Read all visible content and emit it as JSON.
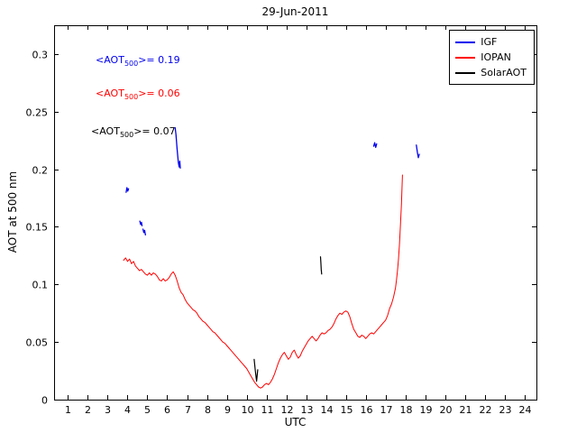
{
  "figure": {
    "background": "#ffffff"
  },
  "chart_data": {
    "type": "line",
    "title": "29-Jun-2011",
    "xlabel": "UTC",
    "ylabel": "AOT at 500 nm",
    "xlim": [
      0.3,
      24.6
    ],
    "ylim": [
      0,
      0.325
    ],
    "xticks": [
      1,
      2,
      3,
      4,
      5,
      6,
      7,
      8,
      9,
      10,
      11,
      12,
      13,
      14,
      15,
      16,
      17,
      18,
      19,
      20,
      21,
      22,
      23,
      24
    ],
    "yticks": [
      0,
      0.05,
      0.1,
      0.15,
      0.2,
      0.25,
      0.3
    ],
    "ytick_labels": [
      "0",
      "0.05",
      "0.1",
      "0.15",
      "0.2",
      "0.25",
      "0.3"
    ],
    "grid": false,
    "legend": {
      "position": "top-right",
      "entries": [
        {
          "label": "IGF",
          "color": "#0000ee"
        },
        {
          "label": "IOPAN",
          "color": "#ff0000"
        },
        {
          "label": "SolarAOT",
          "color": "#000000"
        }
      ]
    },
    "mean_annotations": [
      {
        "pre": "<AOT",
        "sub": "500",
        "post": ">= 0.19",
        "color": "#0000ee"
      },
      {
        "pre": "<AOT",
        "sub": "500",
        "post": ">= 0.06",
        "color": "#ff0000"
      },
      {
        "pre": "<AOT",
        "sub": "500",
        "post": ">= 0.07",
        "color": "#000000"
      }
    ],
    "series": [
      {
        "name": "IGF",
        "color": "#0000ee",
        "style": "segments",
        "width": 1.3,
        "segments": [
          [
            [
              3.93,
              0.18
            ],
            [
              3.97,
              0.184
            ],
            [
              4.01,
              0.181
            ],
            [
              4.05,
              0.183
            ]
          ],
          [
            [
              4.62,
              0.155
            ],
            [
              4.66,
              0.152
            ],
            [
              4.7,
              0.154
            ],
            [
              4.73,
              0.151
            ]
          ],
          [
            [
              4.78,
              0.148
            ],
            [
              4.82,
              0.145
            ],
            [
              4.86,
              0.147
            ],
            [
              4.9,
              0.143
            ]
          ],
          [
            [
              6.4,
              0.236
            ],
            [
              6.44,
              0.23
            ],
            [
              6.47,
              0.224
            ],
            [
              6.5,
              0.217
            ],
            [
              6.53,
              0.211
            ],
            [
              6.56,
              0.206
            ],
            [
              6.6,
              0.202
            ],
            [
              6.63,
              0.207
            ],
            [
              6.66,
              0.201
            ]
          ],
          [
            [
              16.4,
              0.22
            ],
            [
              16.45,
              0.223
            ],
            [
              16.5,
              0.219
            ],
            [
              16.55,
              0.222
            ]
          ],
          [
            [
              18.55,
              0.221
            ],
            [
              18.6,
              0.215
            ],
            [
              18.65,
              0.21
            ],
            [
              18.7,
              0.213
            ]
          ]
        ]
      },
      {
        "name": "IOPAN",
        "color": "#ff0000",
        "style": "line",
        "width": 1,
        "points": [
          [
            3.8,
            0.121
          ],
          [
            3.9,
            0.123
          ],
          [
            4.0,
            0.12
          ],
          [
            4.1,
            0.122
          ],
          [
            4.2,
            0.118
          ],
          [
            4.3,
            0.12
          ],
          [
            4.4,
            0.116
          ],
          [
            4.5,
            0.114
          ],
          [
            4.6,
            0.112
          ],
          [
            4.7,
            0.113
          ],
          [
            4.8,
            0.111
          ],
          [
            4.9,
            0.109
          ],
          [
            5.0,
            0.108
          ],
          [
            5.1,
            0.11
          ],
          [
            5.2,
            0.108
          ],
          [
            5.3,
            0.11
          ],
          [
            5.4,
            0.109
          ],
          [
            5.5,
            0.107
          ],
          [
            5.6,
            0.104
          ],
          [
            5.7,
            0.103
          ],
          [
            5.8,
            0.105
          ],
          [
            5.9,
            0.103
          ],
          [
            6.0,
            0.104
          ],
          [
            6.1,
            0.106
          ],
          [
            6.2,
            0.109
          ],
          [
            6.3,
            0.111
          ],
          [
            6.4,
            0.108
          ],
          [
            6.5,
            0.103
          ],
          [
            6.6,
            0.097
          ],
          [
            6.7,
            0.093
          ],
          [
            6.8,
            0.091
          ],
          [
            6.9,
            0.087
          ],
          [
            7.0,
            0.084
          ],
          [
            7.1,
            0.082
          ],
          [
            7.2,
            0.08
          ],
          [
            7.3,
            0.078
          ],
          [
            7.4,
            0.077
          ],
          [
            7.5,
            0.075
          ],
          [
            7.6,
            0.072
          ],
          [
            7.7,
            0.07
          ],
          [
            7.8,
            0.068
          ],
          [
            7.9,
            0.067
          ],
          [
            8.0,
            0.065
          ],
          [
            8.1,
            0.063
          ],
          [
            8.2,
            0.061
          ],
          [
            8.3,
            0.059
          ],
          [
            8.4,
            0.058
          ],
          [
            8.5,
            0.056
          ],
          [
            8.6,
            0.054
          ],
          [
            8.7,
            0.052
          ],
          [
            8.8,
            0.05
          ],
          [
            8.9,
            0.049
          ],
          [
            9.0,
            0.047
          ],
          [
            9.1,
            0.045
          ],
          [
            9.2,
            0.043
          ],
          [
            9.3,
            0.041
          ],
          [
            9.4,
            0.039
          ],
          [
            9.5,
            0.037
          ],
          [
            9.6,
            0.035
          ],
          [
            9.7,
            0.033
          ],
          [
            9.8,
            0.031
          ],
          [
            9.9,
            0.029
          ],
          [
            10.0,
            0.027
          ],
          [
            10.1,
            0.024
          ],
          [
            10.2,
            0.021
          ],
          [
            10.3,
            0.018
          ],
          [
            10.4,
            0.015
          ],
          [
            10.5,
            0.013
          ],
          [
            10.6,
            0.011
          ],
          [
            10.7,
            0.01
          ],
          [
            10.8,
            0.011
          ],
          [
            10.9,
            0.013
          ],
          [
            11.0,
            0.014
          ],
          [
            11.1,
            0.013
          ],
          [
            11.2,
            0.015
          ],
          [
            11.3,
            0.018
          ],
          [
            11.4,
            0.022
          ],
          [
            11.5,
            0.027
          ],
          [
            11.6,
            0.032
          ],
          [
            11.7,
            0.036
          ],
          [
            11.8,
            0.039
          ],
          [
            11.9,
            0.041
          ],
          [
            12.0,
            0.038
          ],
          [
            12.1,
            0.035
          ],
          [
            12.2,
            0.037
          ],
          [
            12.3,
            0.041
          ],
          [
            12.4,
            0.043
          ],
          [
            12.5,
            0.039
          ],
          [
            12.6,
            0.036
          ],
          [
            12.7,
            0.038
          ],
          [
            12.8,
            0.042
          ],
          [
            12.9,
            0.045
          ],
          [
            13.0,
            0.048
          ],
          [
            13.1,
            0.051
          ],
          [
            13.2,
            0.053
          ],
          [
            13.3,
            0.055
          ],
          [
            13.4,
            0.053
          ],
          [
            13.5,
            0.051
          ],
          [
            13.6,
            0.053
          ],
          [
            13.7,
            0.056
          ],
          [
            13.8,
            0.058
          ],
          [
            13.9,
            0.057
          ],
          [
            14.0,
            0.058
          ],
          [
            14.1,
            0.06
          ],
          [
            14.2,
            0.061
          ],
          [
            14.3,
            0.063
          ],
          [
            14.4,
            0.066
          ],
          [
            14.5,
            0.07
          ],
          [
            14.6,
            0.073
          ],
          [
            14.7,
            0.075
          ],
          [
            14.8,
            0.074
          ],
          [
            14.9,
            0.076
          ],
          [
            15.0,
            0.077
          ],
          [
            15.1,
            0.076
          ],
          [
            15.2,
            0.072
          ],
          [
            15.3,
            0.066
          ],
          [
            15.4,
            0.061
          ],
          [
            15.5,
            0.058
          ],
          [
            15.6,
            0.055
          ],
          [
            15.7,
            0.054
          ],
          [
            15.8,
            0.056
          ],
          [
            15.9,
            0.055
          ],
          [
            16.0,
            0.053
          ],
          [
            16.1,
            0.055
          ],
          [
            16.2,
            0.057
          ],
          [
            16.3,
            0.058
          ],
          [
            16.4,
            0.057
          ],
          [
            16.5,
            0.059
          ],
          [
            16.6,
            0.061
          ],
          [
            16.7,
            0.063
          ],
          [
            16.8,
            0.065
          ],
          [
            16.9,
            0.067
          ],
          [
            17.0,
            0.069
          ],
          [
            17.1,
            0.073
          ],
          [
            17.2,
            0.079
          ],
          [
            17.3,
            0.083
          ],
          [
            17.4,
            0.089
          ],
          [
            17.5,
            0.097
          ],
          [
            17.55,
            0.104
          ],
          [
            17.6,
            0.112
          ],
          [
            17.65,
            0.122
          ],
          [
            17.7,
            0.135
          ],
          [
            17.75,
            0.152
          ],
          [
            17.8,
            0.17
          ],
          [
            17.85,
            0.195
          ]
        ]
      },
      {
        "name": "SolarAOT",
        "color": "#000000",
        "style": "segments",
        "width": 1.2,
        "segments": [
          [
            [
              10.38,
              0.035
            ],
            [
              10.44,
              0.025
            ],
            [
              10.5,
              0.016
            ],
            [
              10.56,
              0.026
            ]
          ],
          [
            [
              13.72,
              0.124
            ],
            [
              13.74,
              0.119
            ],
            [
              13.76,
              0.113
            ],
            [
              13.78,
              0.109
            ]
          ]
        ]
      }
    ]
  }
}
